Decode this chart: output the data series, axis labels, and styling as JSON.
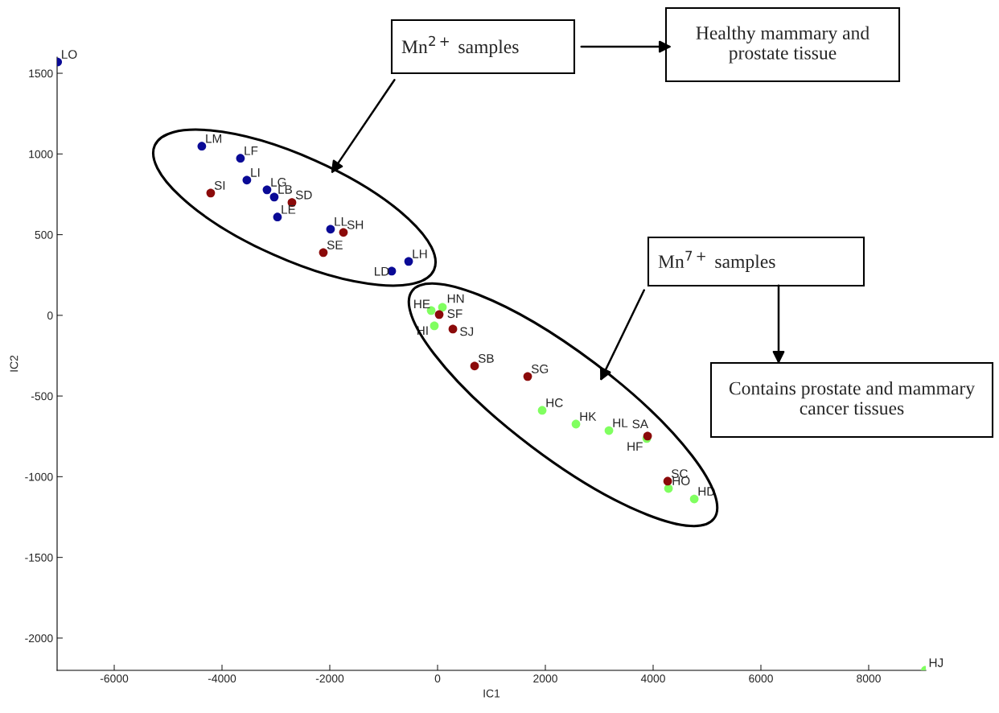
{
  "chart_data": {
    "type": "scatter",
    "xlabel": "IC1",
    "ylabel": "IC2",
    "xlim": [
      -7060,
      9060
    ],
    "ylim": [
      -2200,
      1600
    ],
    "xticks": [
      -6000,
      -4000,
      -2000,
      0,
      2000,
      4000,
      6000,
      8000
    ],
    "yticks": [
      -2000,
      -1500,
      -1000,
      -500,
      0,
      500,
      1000,
      1500
    ],
    "grid": false,
    "legend": false,
    "marker": "circle",
    "series": [
      {
        "color": "#0a0a96",
        "x": [
          -7050,
          -4375,
          -3658,
          -3539,
          -3165,
          -3031,
          -2971,
          -1986,
          -851,
          -537
        ],
        "values": [
          1570,
          1048,
          973,
          838,
          778,
          733,
          609,
          534,
          274,
          334
        ],
        "value_labels": [
          "LO",
          "LM",
          "LF",
          "LI",
          "LG",
          "LB",
          "LE",
          "LL",
          "LD",
          "LH"
        ]
      },
      {
        "color": "#80ff60",
        "x": [
          -119,
          90,
          -60,
          3882,
          4285,
          4763,
          1941,
          2568,
          3180,
          9050
        ],
        "values": [
          30,
          50,
          -65,
          -763,
          -1073,
          -1138,
          -589,
          -674,
          -714,
          -2200
        ],
        "value_labels": [
          "HE",
          "HN",
          "HI",
          "HF",
          "HO",
          "HD",
          "HC",
          "HK",
          "HL",
          "HJ"
        ]
      },
      {
        "color": "#8b0a0a",
        "x": [
          -4210,
          -2702,
          -1747,
          -2120,
          284,
          687,
          1672,
          30,
          3897,
          4270
        ],
        "values": [
          758,
          699,
          514,
          389,
          -85,
          -314,
          -379,
          5,
          -748,
          -1028
        ],
        "value_labels": [
          "SI",
          "SD",
          "SH",
          "SE",
          "SJ",
          "SB",
          "SG",
          "SF",
          "SA",
          "SC"
        ]
      }
    ],
    "annotations": [
      "Mn$^{2+}$ samples",
      "Healthy mammary and prostate tissue",
      "Mn$^{7+}$ samples",
      "Contains prostate and mammary cancer tissues"
    ]
  }
}
